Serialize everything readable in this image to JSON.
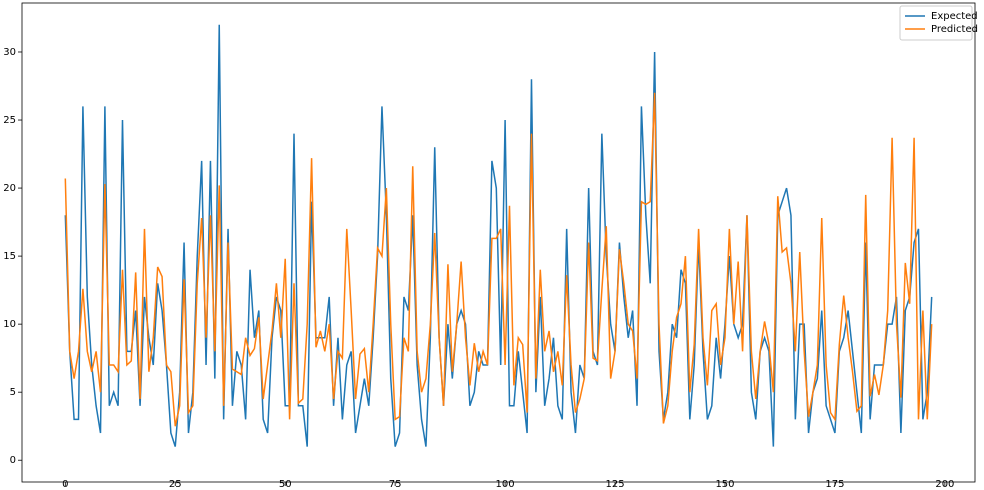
{
  "chart_data": {
    "type": "line",
    "x": [
      0,
      1,
      2,
      3,
      4,
      5,
      6,
      7,
      8,
      9,
      10,
      11,
      12,
      13,
      14,
      15,
      16,
      17,
      18,
      19,
      20,
      21,
      22,
      23,
      24,
      25,
      26,
      27,
      28,
      29,
      30,
      31,
      32,
      33,
      34,
      35,
      36,
      37,
      38,
      39,
      40,
      41,
      42,
      43,
      44,
      45,
      46,
      47,
      48,
      49,
      50,
      51,
      52,
      53,
      54,
      55,
      56,
      57,
      58,
      59,
      60,
      61,
      62,
      63,
      64,
      65,
      66,
      67,
      68,
      69,
      70,
      71,
      72,
      73,
      74,
      75,
      76,
      77,
      78,
      79,
      80,
      81,
      82,
      83,
      84,
      85,
      86,
      87,
      88,
      89,
      90,
      91,
      92,
      93,
      94,
      95,
      96,
      97,
      98,
      99,
      100,
      101,
      102,
      103,
      104,
      105,
      106,
      107,
      108,
      109,
      110,
      111,
      112,
      113,
      114,
      115,
      116,
      117,
      118,
      119,
      120,
      121,
      122,
      123,
      124,
      125,
      126,
      127,
      128,
      129,
      130,
      131,
      132,
      133,
      134,
      135,
      136,
      137,
      138,
      139,
      140,
      141,
      142,
      143,
      144,
      145,
      146,
      147,
      148,
      149,
      150,
      151,
      152,
      153,
      154,
      155,
      156,
      157,
      158,
      159,
      160,
      161,
      162,
      163,
      164,
      165,
      166,
      167,
      168,
      169,
      170,
      171,
      172,
      173,
      174,
      175,
      176,
      177,
      178,
      179,
      180,
      181,
      182,
      183,
      184,
      185,
      186,
      187,
      188,
      189,
      190,
      191,
      192,
      193,
      194,
      195,
      196,
      197
    ],
    "series": [
      {
        "name": "Expected",
        "color": "#1f77b4",
        "values": [
          18,
          8,
          3,
          3,
          26,
          12,
          7,
          4,
          2,
          26,
          4,
          5,
          4,
          25,
          8,
          8,
          11,
          4,
          12,
          9,
          7,
          13,
          11,
          7,
          2,
          1,
          5,
          16,
          2,
          5,
          15,
          22,
          7,
          22,
          6,
          32,
          3,
          17,
          4,
          8,
          7,
          3,
          14,
          9,
          11,
          3,
          2,
          9,
          12,
          11,
          4,
          4,
          24,
          4,
          4,
          1,
          19,
          9,
          9,
          9,
          12,
          4,
          9,
          3,
          7,
          8,
          2,
          4,
          6,
          4,
          9,
          15,
          26,
          18,
          6,
          1,
          2,
          12,
          11,
          18,
          7,
          3,
          1,
          9,
          23,
          9,
          4,
          10,
          6,
          10,
          11,
          10,
          4,
          5,
          8,
          7,
          7,
          22,
          20,
          7,
          25,
          4,
          4,
          8,
          5,
          2,
          28,
          5,
          12,
          4,
          6,
          9,
          4,
          3,
          17,
          5,
          2,
          7,
          6,
          20,
          8,
          7,
          24,
          15,
          10,
          8,
          16,
          12,
          9,
          11,
          4,
          26,
          18,
          13,
          30,
          8,
          3,
          5,
          10,
          9,
          14,
          13,
          3,
          7,
          16,
          8,
          3,
          4,
          9,
          6,
          10,
          15,
          10,
          9,
          10,
          18,
          5,
          3,
          8,
          9,
          8,
          1,
          18,
          19,
          20,
          18,
          3,
          10,
          10,
          2,
          5,
          6,
          11,
          4,
          3,
          2,
          8,
          9,
          11,
          8,
          5,
          2,
          16,
          3,
          7,
          7,
          7,
          10,
          10,
          12,
          2,
          11,
          12,
          16,
          17,
          3,
          5,
          12
        ]
      },
      {
        "name": "Predicted",
        "color": "#ff7f0e",
        "values": [
          20.7,
          8,
          6,
          8,
          12.6,
          8,
          6.5,
          8,
          5,
          20.3,
          7,
          7,
          6.5,
          14,
          7,
          7.3,
          13.8,
          4.5,
          17,
          6.5,
          9,
          14.2,
          13.5,
          7,
          6.5,
          2.5,
          4,
          13.3,
          3.5,
          4,
          13,
          17.8,
          9,
          18,
          8,
          20.2,
          4,
          16,
          6.7,
          6.5,
          6.3,
          9,
          7.7,
          8.2,
          10.5,
          4.5,
          7,
          9.5,
          13,
          9,
          14.8,
          3,
          13,
          4.2,
          4.5,
          10,
          22.2,
          8.3,
          9.5,
          8,
          10,
          4.5,
          8,
          7.5,
          17,
          11,
          4.5,
          7.8,
          8.2,
          5,
          10,
          15.6,
          15,
          20,
          10,
          3,
          3.2,
          9,
          8,
          21.6,
          8,
          5,
          6,
          10,
          16.7,
          9,
          4,
          14.4,
          6.5,
          10,
          14.6,
          9,
          5.5,
          8.6,
          6.5,
          8,
          7,
          16.3,
          16.3,
          17,
          7,
          18.7,
          5.5,
          9,
          8.5,
          3.5,
          24,
          6,
          14,
          8,
          9.5,
          6.5,
          8,
          5.5,
          13.6,
          7,
          3.5,
          4.5,
          6,
          16,
          7.5,
          7.3,
          12.5,
          17.2,
          6,
          8,
          15.5,
          13,
          10,
          9.5,
          6,
          19,
          18.8,
          19,
          27,
          10,
          2.7,
          4,
          8,
          10.5,
          11.5,
          15,
          5,
          8.5,
          17,
          9,
          5.5,
          11,
          11.5,
          7,
          9,
          17,
          10,
          14.6,
          8,
          18,
          8,
          4.5,
          8,
          10.2,
          8.5,
          5,
          19.4,
          15.3,
          15.6,
          13,
          8,
          15.3,
          8,
          3.2,
          5,
          7,
          17.8,
          7,
          3.5,
          3,
          8.5,
          12.1,
          9,
          6.5,
          3.6,
          4,
          19.5,
          4.7,
          6.3,
          4.8,
          7,
          11,
          23.7,
          10,
          4.6,
          14.5,
          11.5,
          23.7,
          3,
          11,
          3,
          10
        ]
      }
    ],
    "xlim": [
      -9.85,
      206.85
    ],
    "xticks": [
      0,
      25,
      50,
      75,
      100,
      125,
      150,
      175,
      200
    ],
    "ylim": [
      -1.6,
      33.6
    ],
    "yticks": [
      0,
      5,
      10,
      15,
      20,
      25,
      30
    ],
    "legend": "upper right"
  }
}
